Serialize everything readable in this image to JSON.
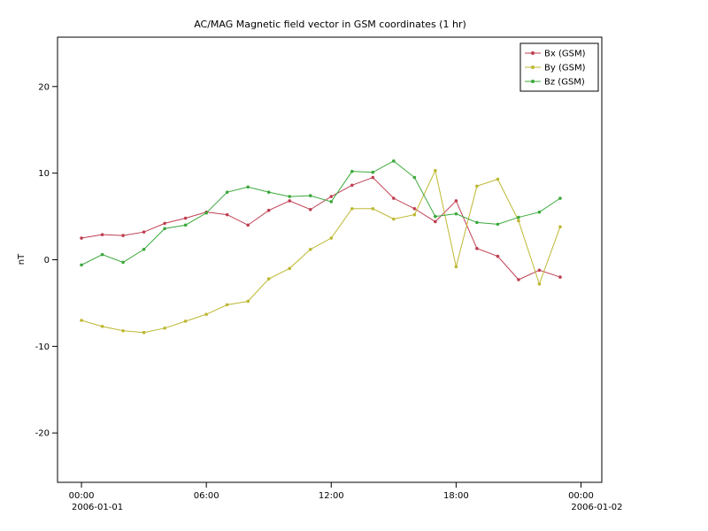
{
  "chart_data": {
    "type": "line",
    "title": "AC/MAG  Magnetic field vector in GSM coordinates (1 hr)",
    "xlabel": "",
    "ylabel": "nT",
    "grid": false,
    "legend_position": "upper right",
    "ylim": [
      -25.7,
      25.7
    ],
    "xlim_hours": [
      -1.15,
      25.0
    ],
    "yticks": [
      -20,
      -10,
      0,
      10,
      20
    ],
    "xticks": [
      {
        "hour": 0,
        "label": "00:00",
        "sub": "2006-01-01"
      },
      {
        "hour": 6,
        "label": "06:00"
      },
      {
        "hour": 12,
        "label": "12:00"
      },
      {
        "hour": 18,
        "label": "18:00"
      },
      {
        "hour": 24,
        "label": "00:00",
        "sub": "2006-01-02"
      }
    ],
    "x_hours": [
      0,
      1,
      2,
      3,
      4,
      5,
      6,
      7,
      8,
      9,
      10,
      11,
      12,
      13,
      14,
      15,
      16,
      17,
      18,
      19,
      20,
      21,
      22,
      23
    ],
    "series": [
      {
        "name": "Bx (GSM)",
        "color": "#bf3f52",
        "values": [
          2.5,
          2.9,
          2.8,
          3.2,
          4.2,
          4.8,
          5.5,
          5.2,
          4.0,
          5.7,
          6.8,
          5.8,
          7.3,
          8.6,
          9.5,
          7.1,
          5.9,
          4.4,
          6.8,
          1.3,
          0.4,
          -2.3,
          -1.2,
          -2.0
        ]
      },
      {
        "name": "By (GSM)",
        "color": "#bdb832",
        "values": [
          -7.0,
          -7.7,
          -8.2,
          -8.4,
          -7.9,
          -7.1,
          -6.3,
          -5.2,
          -4.8,
          -2.2,
          -1.0,
          1.2,
          2.5,
          5.9,
          5.9,
          4.7,
          5.2,
          10.3,
          -0.8,
          8.5,
          9.3,
          4.5,
          -2.8,
          3.8
        ]
      },
      {
        "name": "Bz (GSM)",
        "color": "#3ba83b",
        "values": [
          -0.6,
          0.6,
          -0.3,
          1.2,
          3.6,
          4.0,
          5.4,
          7.8,
          8.4,
          7.8,
          7.3,
          7.4,
          6.7,
          10.2,
          10.1,
          11.4,
          9.5,
          5.0,
          5.3,
          4.3,
          4.1,
          4.9,
          5.5,
          7.1
        ]
      }
    ],
    "plot_colors": {
      "frame": "#000000",
      "background": "#ffffff"
    }
  }
}
